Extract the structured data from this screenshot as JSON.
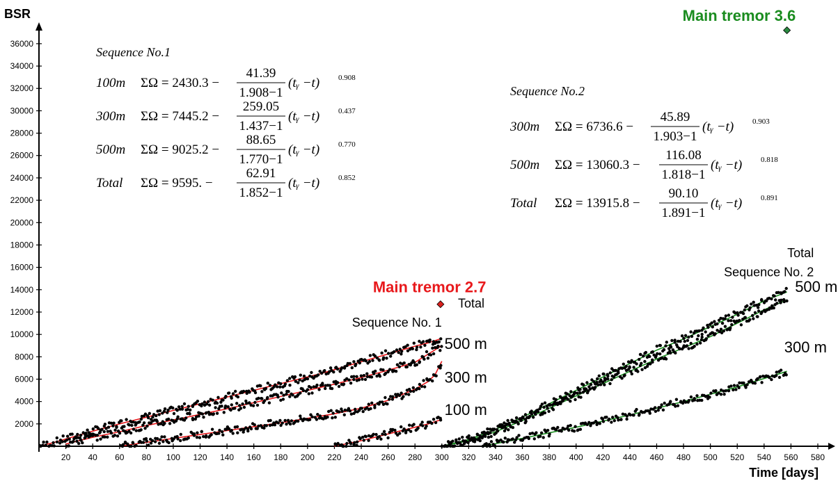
{
  "chart_data": {
    "type": "scatter",
    "xlabel": "Time [days]",
    "ylabel": "BSR",
    "xlim": [
      0,
      580
    ],
    "ylim": [
      0,
      37000
    ],
    "x_ticks": [
      20,
      40,
      60,
      80,
      100,
      120,
      140,
      160,
      180,
      200,
      220,
      240,
      260,
      280,
      300,
      320,
      340,
      360,
      380,
      400,
      420,
      440,
      460,
      480,
      500,
      520,
      540,
      560,
      580
    ],
    "y_ticks": [
      2000,
      4000,
      6000,
      8000,
      10000,
      12000,
      14000,
      16000,
      18000,
      20000,
      22000,
      24000,
      26000,
      28000,
      30000,
      32000,
      34000,
      36000
    ],
    "grid": false,
    "colors": {
      "seq1": "#e8191c",
      "seq2": "#1a8c1f",
      "seq1_marker": "#d9211e",
      "seq2_marker": "#2a8a40",
      "points": "#000000"
    },
    "main_shocks": [
      {
        "label": "Main tremor 2.7",
        "x": 299,
        "y": 12700,
        "color": "#e8191c"
      },
      {
        "label": "Main tremor 3.6",
        "x": 557,
        "y": 37200,
        "color": "#1a8c1f"
      }
    ],
    "series": [
      {
        "sequence": 1,
        "curve": "Total",
        "x": [
          0,
          10,
          20,
          30,
          40,
          50,
          60,
          70,
          80,
          90,
          100,
          110,
          120,
          130,
          140,
          150,
          160,
          170,
          180,
          190,
          200,
          210,
          220,
          230,
          240,
          250,
          260,
          270,
          280,
          290,
          300
        ],
        "y": [
          0,
          300,
          650,
          1000,
          1350,
          1680,
          2000,
          2300,
          2600,
          2900,
          3200,
          3500,
          3800,
          4100,
          4400,
          4700,
          5000,
          5300,
          5600,
          5900,
          6200,
          6500,
          6850,
          7200,
          7550,
          7900,
          8250,
          8600,
          8950,
          9250,
          9650
        ]
      },
      {
        "sequence": 1,
        "curve": "500 m",
        "x": [
          20,
          40,
          60,
          80,
          100,
          120,
          140,
          160,
          180,
          200,
          220,
          240,
          260,
          280,
          300
        ],
        "y": [
          200,
          800,
          1300,
          1850,
          2350,
          2850,
          3350,
          3900,
          4450,
          5000,
          5550,
          6150,
          6800,
          7500,
          9000
        ]
      },
      {
        "sequence": 1,
        "curve": "300 m",
        "x": [
          60,
          80,
          100,
          120,
          140,
          160,
          180,
          200,
          220,
          240,
          260,
          280,
          290,
          295,
          300
        ],
        "y": [
          0,
          350,
          700,
          1050,
          1400,
          1750,
          2100,
          2500,
          2900,
          3400,
          4100,
          5100,
          5800,
          6400,
          7600
        ]
      },
      {
        "sequence": 1,
        "curve": "100 m",
        "x": [
          220,
          240,
          260,
          280,
          290,
          300
        ],
        "y": [
          0,
          500,
          1100,
          1700,
          2000,
          2400
        ]
      },
      {
        "sequence": 2,
        "curve": "Total",
        "x": [
          300,
          320,
          340,
          360,
          380,
          400,
          420,
          440,
          460,
          480,
          500,
          520,
          540,
          557
        ],
        "y": [
          0,
          600,
          1500,
          2600,
          3800,
          5000,
          6200,
          7400,
          8600,
          9600,
          10700,
          11800,
          13000,
          13800
        ]
      },
      {
        "sequence": 2,
        "curve": "500 m",
        "x": [
          300,
          320,
          340,
          360,
          380,
          400,
          420,
          440,
          460,
          480,
          500,
          520,
          540,
          557
        ],
        "y": [
          0,
          500,
          1300,
          2300,
          3400,
          4500,
          5600,
          6700,
          7800,
          8800,
          9800,
          11000,
          12200,
          13100
        ]
      },
      {
        "sequence": 2,
        "curve": "300 m",
        "x": [
          330,
          360,
          400,
          440,
          480,
          520,
          557
        ],
        "y": [
          0,
          700,
          1700,
          2800,
          4000,
          5300,
          6700
        ]
      }
    ],
    "curve_labels": [
      {
        "text": "Total",
        "x": 312,
        "y": 12400,
        "color": "#000"
      },
      {
        "text": "Sequence No. 1",
        "x": 300,
        "y": 10700,
        "color": "#000"
      },
      {
        "text": "500 m",
        "x": 302,
        "y": 8700,
        "color": "#000"
      },
      {
        "text": "300 m",
        "x": 302,
        "y": 5700,
        "color": "#000"
      },
      {
        "text": "100 m",
        "x": 302,
        "y": 2800,
        "color": "#000"
      },
      {
        "text": "Total",
        "x": 577,
        "y": 16900,
        "color": "#000"
      },
      {
        "text": "Sequence No. 2",
        "x": 577,
        "y": 15200,
        "color": "#000"
      },
      {
        "text": "500 m",
        "x": 563,
        "y": 13800,
        "color": "#000"
      },
      {
        "text": "300 m",
        "x": 555,
        "y": 8400,
        "color": "#000"
      }
    ],
    "equations": {
      "seq1": {
        "heading": "Sequence No.1",
        "rows": [
          {
            "label": "100m",
            "const": "2430.3",
            "num": "41.39",
            "den": "1.908−1",
            "exp": "0.908"
          },
          {
            "label": "300m",
            "const": "7445.2",
            "num": "259.05",
            "den": "1.437−1",
            "exp": "0.437"
          },
          {
            "label": "500m",
            "const": "9025.2",
            "num": "88.65",
            "den": "1.770−1",
            "exp": "0.770"
          },
          {
            "label": "Total",
            "const": "9595.",
            "num": "62.91",
            "den": "1.852−1",
            "exp": "0.852"
          }
        ]
      },
      "seq2": {
        "heading": "Sequence No.2",
        "rows": [
          {
            "label": "300m",
            "const": "6736.6",
            "num": "45.89",
            "den": "1.903−1",
            "exp": "0.903"
          },
          {
            "label": "500m",
            "const": "13060.3",
            "num": "116.08",
            "den": "1.818−1",
            "exp": "0.818"
          },
          {
            "label": "Total",
            "const": "13915.8",
            "num": "90.10",
            "den": "1.891−1",
            "exp": "0.891"
          }
        ]
      },
      "sum_symbol": "ΣΩ",
      "base": "(tᵧ −t)"
    }
  }
}
